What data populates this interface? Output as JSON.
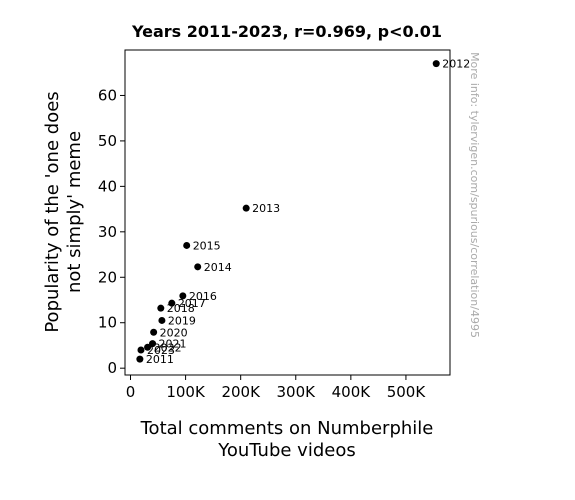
{
  "chart_data": {
    "type": "scatter",
    "title": "Years 2011-2023, r=0.969, p<0.01",
    "xlabel": [
      "Total comments on Numberphile",
      "YouTube videos"
    ],
    "ylabel": [
      "Popularity of the 'one does",
      "not simply' meme"
    ],
    "xlim": [
      -10000,
      580000
    ],
    "ylim": [
      -1.5,
      70
    ],
    "xticks": [
      0,
      100000,
      200000,
      300000,
      400000,
      500000
    ],
    "xtick_labels": [
      "0",
      "100K",
      "200K",
      "300K",
      "400K",
      "500K"
    ],
    "yticks": [
      0,
      10,
      20,
      30,
      40,
      50,
      60
    ],
    "ytick_labels": [
      "0",
      "10",
      "20",
      "30",
      "40",
      "50",
      "60"
    ],
    "grid": false,
    "watermark": "More info: tylervigen.com/spurious/correlation/4995",
    "points": [
      {
        "label": "2011",
        "x": 17000,
        "y": 2
      },
      {
        "label": "2012",
        "x": 555000,
        "y": 67
      },
      {
        "label": "2013",
        "x": 210000,
        "y": 35.2
      },
      {
        "label": "2014",
        "x": 122000,
        "y": 22.3
      },
      {
        "label": "2015",
        "x": 102000,
        "y": 27
      },
      {
        "label": "2016",
        "x": 95000,
        "y": 15.9
      },
      {
        "label": "2017",
        "x": 75000,
        "y": 14.3
      },
      {
        "label": "2018",
        "x": 55000,
        "y": 13.2
      },
      {
        "label": "2019",
        "x": 57000,
        "y": 10.5
      },
      {
        "label": "2020",
        "x": 42000,
        "y": 7.9
      },
      {
        "label": "2021",
        "x": 40000,
        "y": 5.4
      },
      {
        "label": "2022",
        "x": 31000,
        "y": 4.6
      },
      {
        "label": "2023",
        "x": 19000,
        "y": 4
      }
    ],
    "marker_color": "#000000"
  }
}
